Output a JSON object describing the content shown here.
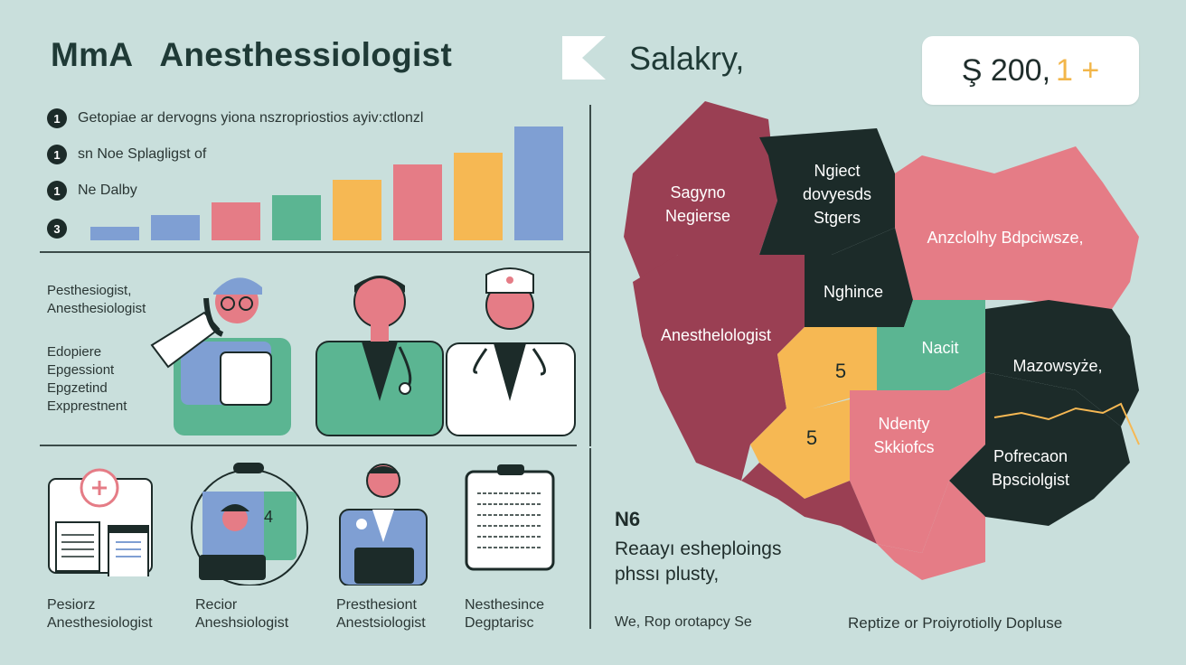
{
  "header": {
    "title": "MmA   Anesthessiologist",
    "salary_label": "Salakry,",
    "salary_amount": "Ş 200,",
    "salary_suffix": "1  +"
  },
  "stats": [
    {
      "badge": "1",
      "text": "Getopiae ar dervogns yiona nszropriostios ayiv:ctlonzl"
    },
    {
      "badge": "1",
      "text": "sn Noe Splagligst of"
    },
    {
      "badge": "1",
      "text": "Ne Dalby"
    },
    {
      "badge": "3",
      "text": ""
    }
  ],
  "chart_data": {
    "type": "bar",
    "categories": [
      "",
      "",
      "",
      "",
      "",
      "",
      "",
      ""
    ],
    "values": [
      1.2,
      2.2,
      3.3,
      4.0,
      5.3,
      6.7,
      7.7,
      10.0
    ],
    "colors": [
      "#7f9fd3",
      "#7f9fd3",
      "#e57c86",
      "#5bb592",
      "#f6b853",
      "#e57c86",
      "#f6b853",
      "#7f9fd3"
    ],
    "ylim": [
      0,
      10
    ]
  },
  "middle_left": {
    "caption1": "Pesthesiogist,",
    "caption2": "Anesthesiologist",
    "caption3": "Edopiere",
    "caption4": "Epgessiont",
    "caption5": "Epgzetind",
    "caption6": "Expprestnent"
  },
  "bottom_icons": [
    {
      "line1": "Pesiorz",
      "line2": "Anesthesiologist"
    },
    {
      "line1": "Recior",
      "line2": "Aneshsiologist"
    },
    {
      "line1": "Presthesiont",
      "line2": "Anestsiologist"
    },
    {
      "line1": "Nesthesince",
      "line2": "Degptarisc"
    }
  ],
  "map": {
    "regions": [
      {
        "label": "Sagyno\nNegierse"
      },
      {
        "label": "Ngiect\ndovyesds\nStgers"
      },
      {
        "label": "Anzclolhy Bdpciwsze,"
      },
      {
        "label": "Nghince"
      },
      {
        "label": "Anesthelologist"
      },
      {
        "label": "5"
      },
      {
        "label": "Nacit"
      },
      {
        "label": "Mazowsyże,"
      },
      {
        "label": "5"
      },
      {
        "label": "Ndenty\nSkkiofcs"
      },
      {
        "label": "Pofrecaon\nBpsciolgist"
      }
    ]
  },
  "bottom_right": {
    "n6": "N6",
    "ready1": "Reaayı esheploings",
    "ready2": "phssı plusty,",
    "note": "We, Rop orotapcy Se",
    "note2": "Reptize or Proiyrotiolly Dopluse"
  },
  "colors": {
    "background": "#c9dfdc",
    "maroon": "#9a3f53",
    "navy": "#1c2b29",
    "pink": "#e57c86",
    "teal": "#5bb592",
    "yellow": "#f6b853",
    "blue": "#7f9fd3"
  }
}
